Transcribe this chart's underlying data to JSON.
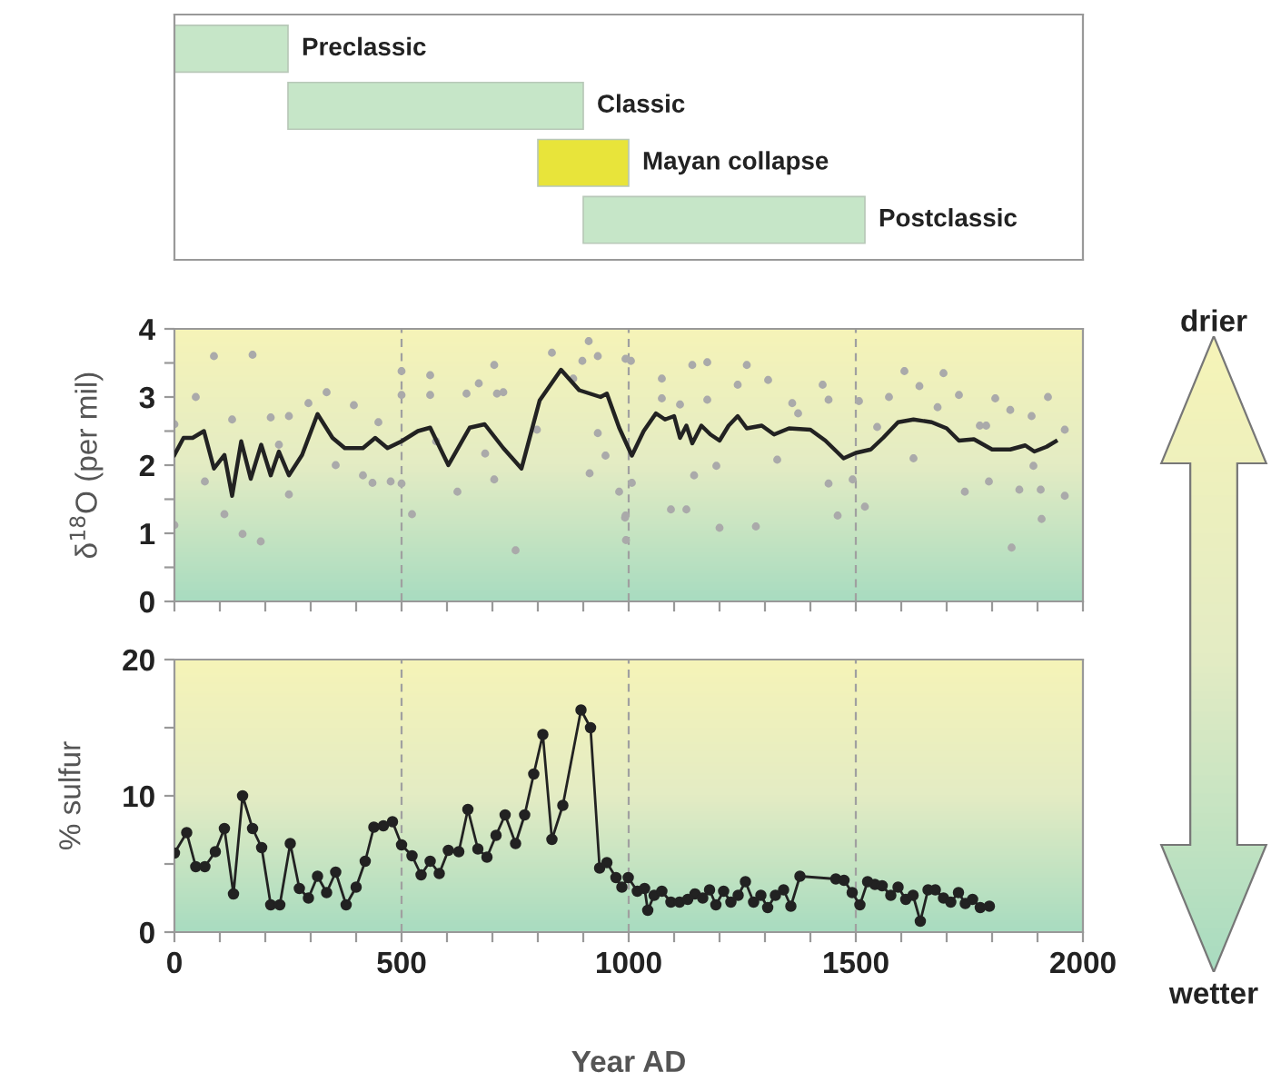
{
  "chart_data": [
    {
      "type": "bar",
      "orientation": "horizontal",
      "categories": [
        "Preclassic",
        "Classic",
        "Mayan collapse",
        "Postclassic"
      ],
      "base": [
        0,
        250,
        800,
        900
      ],
      "values": [
        250,
        650,
        200,
        620
      ],
      "colors": [
        "#c6e6c8",
        "#c6e6c8",
        "#e8e43a",
        "#c6e6c8"
      ],
      "xlim": [
        0,
        2000
      ],
      "tick_labels": false
    },
    {
      "type": "scatter",
      "ylabel": "δ$^{18}$O (per mil)",
      "xlim": [
        0,
        2000
      ],
      "ylim": [
        0,
        4
      ],
      "xticks": [
        0,
        100,
        200,
        300,
        400,
        500,
        600,
        700,
        800,
        900,
        1000,
        1100,
        1200,
        1300,
        1400,
        1500,
        1600,
        1700,
        1800,
        1900,
        2000
      ],
      "yticks": [
        0,
        {
          "value": 0.5,
          "label": null
        },
        1,
        {
          "value": 1.5,
          "label": null
        },
        2,
        {
          "value": 2.5,
          "label": null
        },
        3,
        {
          "value": 3.5,
          "label": null
        },
        4
      ],
      "tick_labels": "y",
      "ref_lines": [
        {
          "axis": "x",
          "value": 500,
          "color": "#a0a0a0",
          "line_style": "dashed"
        },
        {
          "axis": "x",
          "value": 1000,
          "color": "#a0a0a0",
          "line_style": "dashed"
        },
        {
          "axis": "x",
          "value": 1500,
          "color": "#a0a0a0",
          "line_style": "dashed"
        }
      ],
      "annotations": [
        "drier",
        "wetter"
      ],
      "series": [
        {
          "type": "scatter",
          "color": "#aaaaaa",
          "x": [
            0,
            0,
            47,
            67,
            87,
            110,
            127,
            150,
            172,
            190,
            212,
            230,
            252,
            252,
            295,
            335,
            355,
            395,
            415,
            436,
            449,
            476,
            500,
            500,
            500,
            523,
            563,
            563,
            576,
            623,
            643,
            670,
            684,
            704,
            704,
            710,
            724,
            751,
            798,
            831,
            878,
            898,
            912,
            914,
            932,
            932,
            949,
            979,
            992,
            994,
            1005,
            993,
            1007,
            993,
            1073,
            1073,
            1093,
            1113,
            1127,
            1140,
            1144,
            1173,
            1173,
            1193,
            1200,
            1240,
            1260,
            1280,
            1307,
            1327,
            1360,
            1373,
            1427,
            1440,
            1440,
            1460,
            1493,
            1507,
            1520,
            1547,
            1573,
            1607,
            1627,
            1640,
            1680,
            1693,
            1727,
            1740,
            1773,
            1787,
            1793,
            1807,
            1840,
            1843,
            1860,
            1887,
            1891,
            1907,
            1909,
            1923,
            1960,
            1960
          ],
          "values": [
            2.6,
            1.12,
            3.0,
            1.76,
            3.6,
            1.28,
            2.67,
            0.99,
            3.62,
            0.88,
            2.7,
            2.3,
            2.72,
            1.57,
            2.91,
            3.07,
            2.0,
            2.88,
            1.85,
            1.74,
            2.63,
            1.76,
            3.38,
            3.03,
            1.73,
            1.28,
            3.32,
            3.03,
            2.35,
            1.61,
            3.05,
            3.2,
            2.17,
            3.47,
            1.79,
            3.05,
            3.07,
            0.75,
            2.52,
            3.65,
            3.27,
            3.53,
            3.82,
            1.88,
            3.6,
            2.47,
            2.14,
            1.61,
            1.23,
            0.9,
            3.53,
            3.56,
            1.74,
            1.26,
            3.27,
            2.98,
            1.35,
            2.89,
            1.35,
            3.47,
            1.85,
            3.51,
            2.96,
            1.99,
            1.08,
            3.18,
            3.47,
            1.1,
            3.25,
            2.08,
            2.91,
            2.76,
            3.18,
            2.96,
            1.73,
            1.26,
            1.79,
            2.94,
            1.39,
            2.56,
            3.0,
            3.38,
            2.1,
            3.16,
            2.85,
            3.35,
            3.03,
            1.61,
            2.58,
            2.58,
            1.76,
            2.98,
            2.81,
            0.79,
            1.64,
            2.72,
            1.99,
            1.64,
            1.21,
            3.0,
            2.52,
            1.55
          ]
        },
        {
          "type": "line",
          "color": "#222222",
          "x": [
            0,
            20,
            40,
            65,
            87,
            110,
            127,
            147,
            168,
            191,
            212,
            230,
            252,
            281,
            315,
            348,
            375,
            415,
            442,
            469,
            500,
            536,
            563,
            603,
            650,
            683,
            724,
            764,
            804,
            851,
            891,
            938,
            952,
            979,
            1007,
            1033,
            1060,
            1080,
            1100,
            1113,
            1127,
            1140,
            1160,
            1180,
            1200,
            1220,
            1240,
            1260,
            1293,
            1320,
            1353,
            1400,
            1433,
            1473,
            1500,
            1533,
            1560,
            1593,
            1627,
            1667,
            1700,
            1727,
            1760,
            1800,
            1840,
            1873,
            1893,
            1920,
            1940
          ],
          "values": [
            2.15,
            2.4,
            2.4,
            2.5,
            1.95,
            2.15,
            1.55,
            2.35,
            1.8,
            2.3,
            1.85,
            2.2,
            1.85,
            2.15,
            2.75,
            2.4,
            2.25,
            2.25,
            2.4,
            2.25,
            2.35,
            2.5,
            2.55,
            2.0,
            2.55,
            2.6,
            2.25,
            1.95,
            2.95,
            3.4,
            3.1,
            3.0,
            3.05,
            2.55,
            2.14,
            2.5,
            2.76,
            2.67,
            2.72,
            2.4,
            2.58,
            2.32,
            2.58,
            2.45,
            2.36,
            2.58,
            2.72,
            2.54,
            2.58,
            2.45,
            2.54,
            2.52,
            2.36,
            2.1,
            2.18,
            2.23,
            2.4,
            2.63,
            2.67,
            2.63,
            2.54,
            2.36,
            2.38,
            2.23,
            2.23,
            2.29,
            2.2,
            2.27,
            2.35
          ]
        }
      ]
    },
    {
      "type": "line",
      "marker": "circle",
      "ylabel": "% sulfur",
      "xlabel": "Year AD",
      "xlim": [
        0,
        2000
      ],
      "ylim": [
        0,
        20
      ],
      "xticks": [
        0,
        {
          "value": 100,
          "label": null
        },
        {
          "value": 200,
          "label": null
        },
        {
          "value": 300,
          "label": null
        },
        {
          "value": 400,
          "label": null
        },
        500,
        {
          "value": 600,
          "label": null
        },
        {
          "value": 700,
          "label": null
        },
        {
          "value": 800,
          "label": null
        },
        {
          "value": 900,
          "label": null
        },
        1000,
        {
          "value": 1100,
          "label": null
        },
        {
          "value": 1200,
          "label": null
        },
        {
          "value": 1300,
          "label": null
        },
        {
          "value": 1400,
          "label": null
        },
        1500,
        {
          "value": 1600,
          "label": null
        },
        {
          "value": 1700,
          "label": null
        },
        {
          "value": 1800,
          "label": null
        },
        {
          "value": 1900,
          "label": null
        },
        2000
      ],
      "yticks": [
        0,
        {
          "value": 5,
          "label": null
        },
        10,
        {
          "value": 15,
          "label": null
        },
        20
      ],
      "ref_lines": [
        {
          "axis": "x",
          "value": 500,
          "color": "#a0a0a0",
          "line_style": "dashed"
        },
        {
          "axis": "x",
          "value": 1000,
          "color": "#a0a0a0",
          "line_style": "dashed"
        },
        {
          "axis": "x",
          "value": 1500,
          "color": "#a0a0a0",
          "line_style": "dashed"
        }
      ],
      "series": [
        {
          "color": "#222222",
          "x": [
            0,
            27,
            47,
            67,
            90,
            110,
            130,
            150,
            172,
            192,
            212,
            232,
            255,
            275,
            295,
            315,
            335,
            355,
            378,
            400,
            420,
            439,
            460,
            480,
            500,
            523,
            543,
            563,
            583,
            603,
            626,
            646,
            668,
            688,
            708,
            728,
            751,
            771,
            791,
            811,
            831,
            855,
            895,
            916,
            936,
            952,
            972,
            985,
            999,
            1019,
            1035,
            1042,
            1056,
            1073,
            1093,
            1112,
            1130,
            1146,
            1163,
            1178,
            1192,
            1209,
            1225,
            1241,
            1257,
            1275,
            1291,
            1306,
            1323,
            1341,
            1357,
            1377,
            1456,
            1474,
            1492,
            1509,
            1526,
            1542,
            1558,
            1577,
            1593,
            1610,
            1626,
            1642,
            1659,
            1675,
            1693,
            1709,
            1726,
            1741,
            1757,
            1774,
            1794
          ],
          "values": [
            5.8,
            7.3,
            4.8,
            4.8,
            5.9,
            7.6,
            2.8,
            10.0,
            7.6,
            6.2,
            2.0,
            2.0,
            6.5,
            3.2,
            2.5,
            4.1,
            2.9,
            4.4,
            2.0,
            3.3,
            5.2,
            7.7,
            7.8,
            8.1,
            6.4,
            5.6,
            4.2,
            5.2,
            4.3,
            6.0,
            5.9,
            9.0,
            6.1,
            5.5,
            7.1,
            8.6,
            6.5,
            8.6,
            11.6,
            14.5,
            6.8,
            9.3,
            16.3,
            15.0,
            4.7,
            5.1,
            4.0,
            3.3,
            4.0,
            3.0,
            3.2,
            1.6,
            2.7,
            3.0,
            2.2,
            2.2,
            2.4,
            2.8,
            2.5,
            3.1,
            2.0,
            3.0,
            2.2,
            2.7,
            3.7,
            2.2,
            2.7,
            1.8,
            2.7,
            3.1,
            1.9,
            4.1,
            3.9,
            3.8,
            2.9,
            2.0,
            3.7,
            3.5,
            3.4,
            2.7,
            3.3,
            2.4,
            2.7,
            0.8,
            3.1,
            3.1,
            2.5,
            2.2,
            2.9,
            2.1,
            2.4,
            1.8,
            1.9
          ]
        }
      ]
    }
  ]
}
